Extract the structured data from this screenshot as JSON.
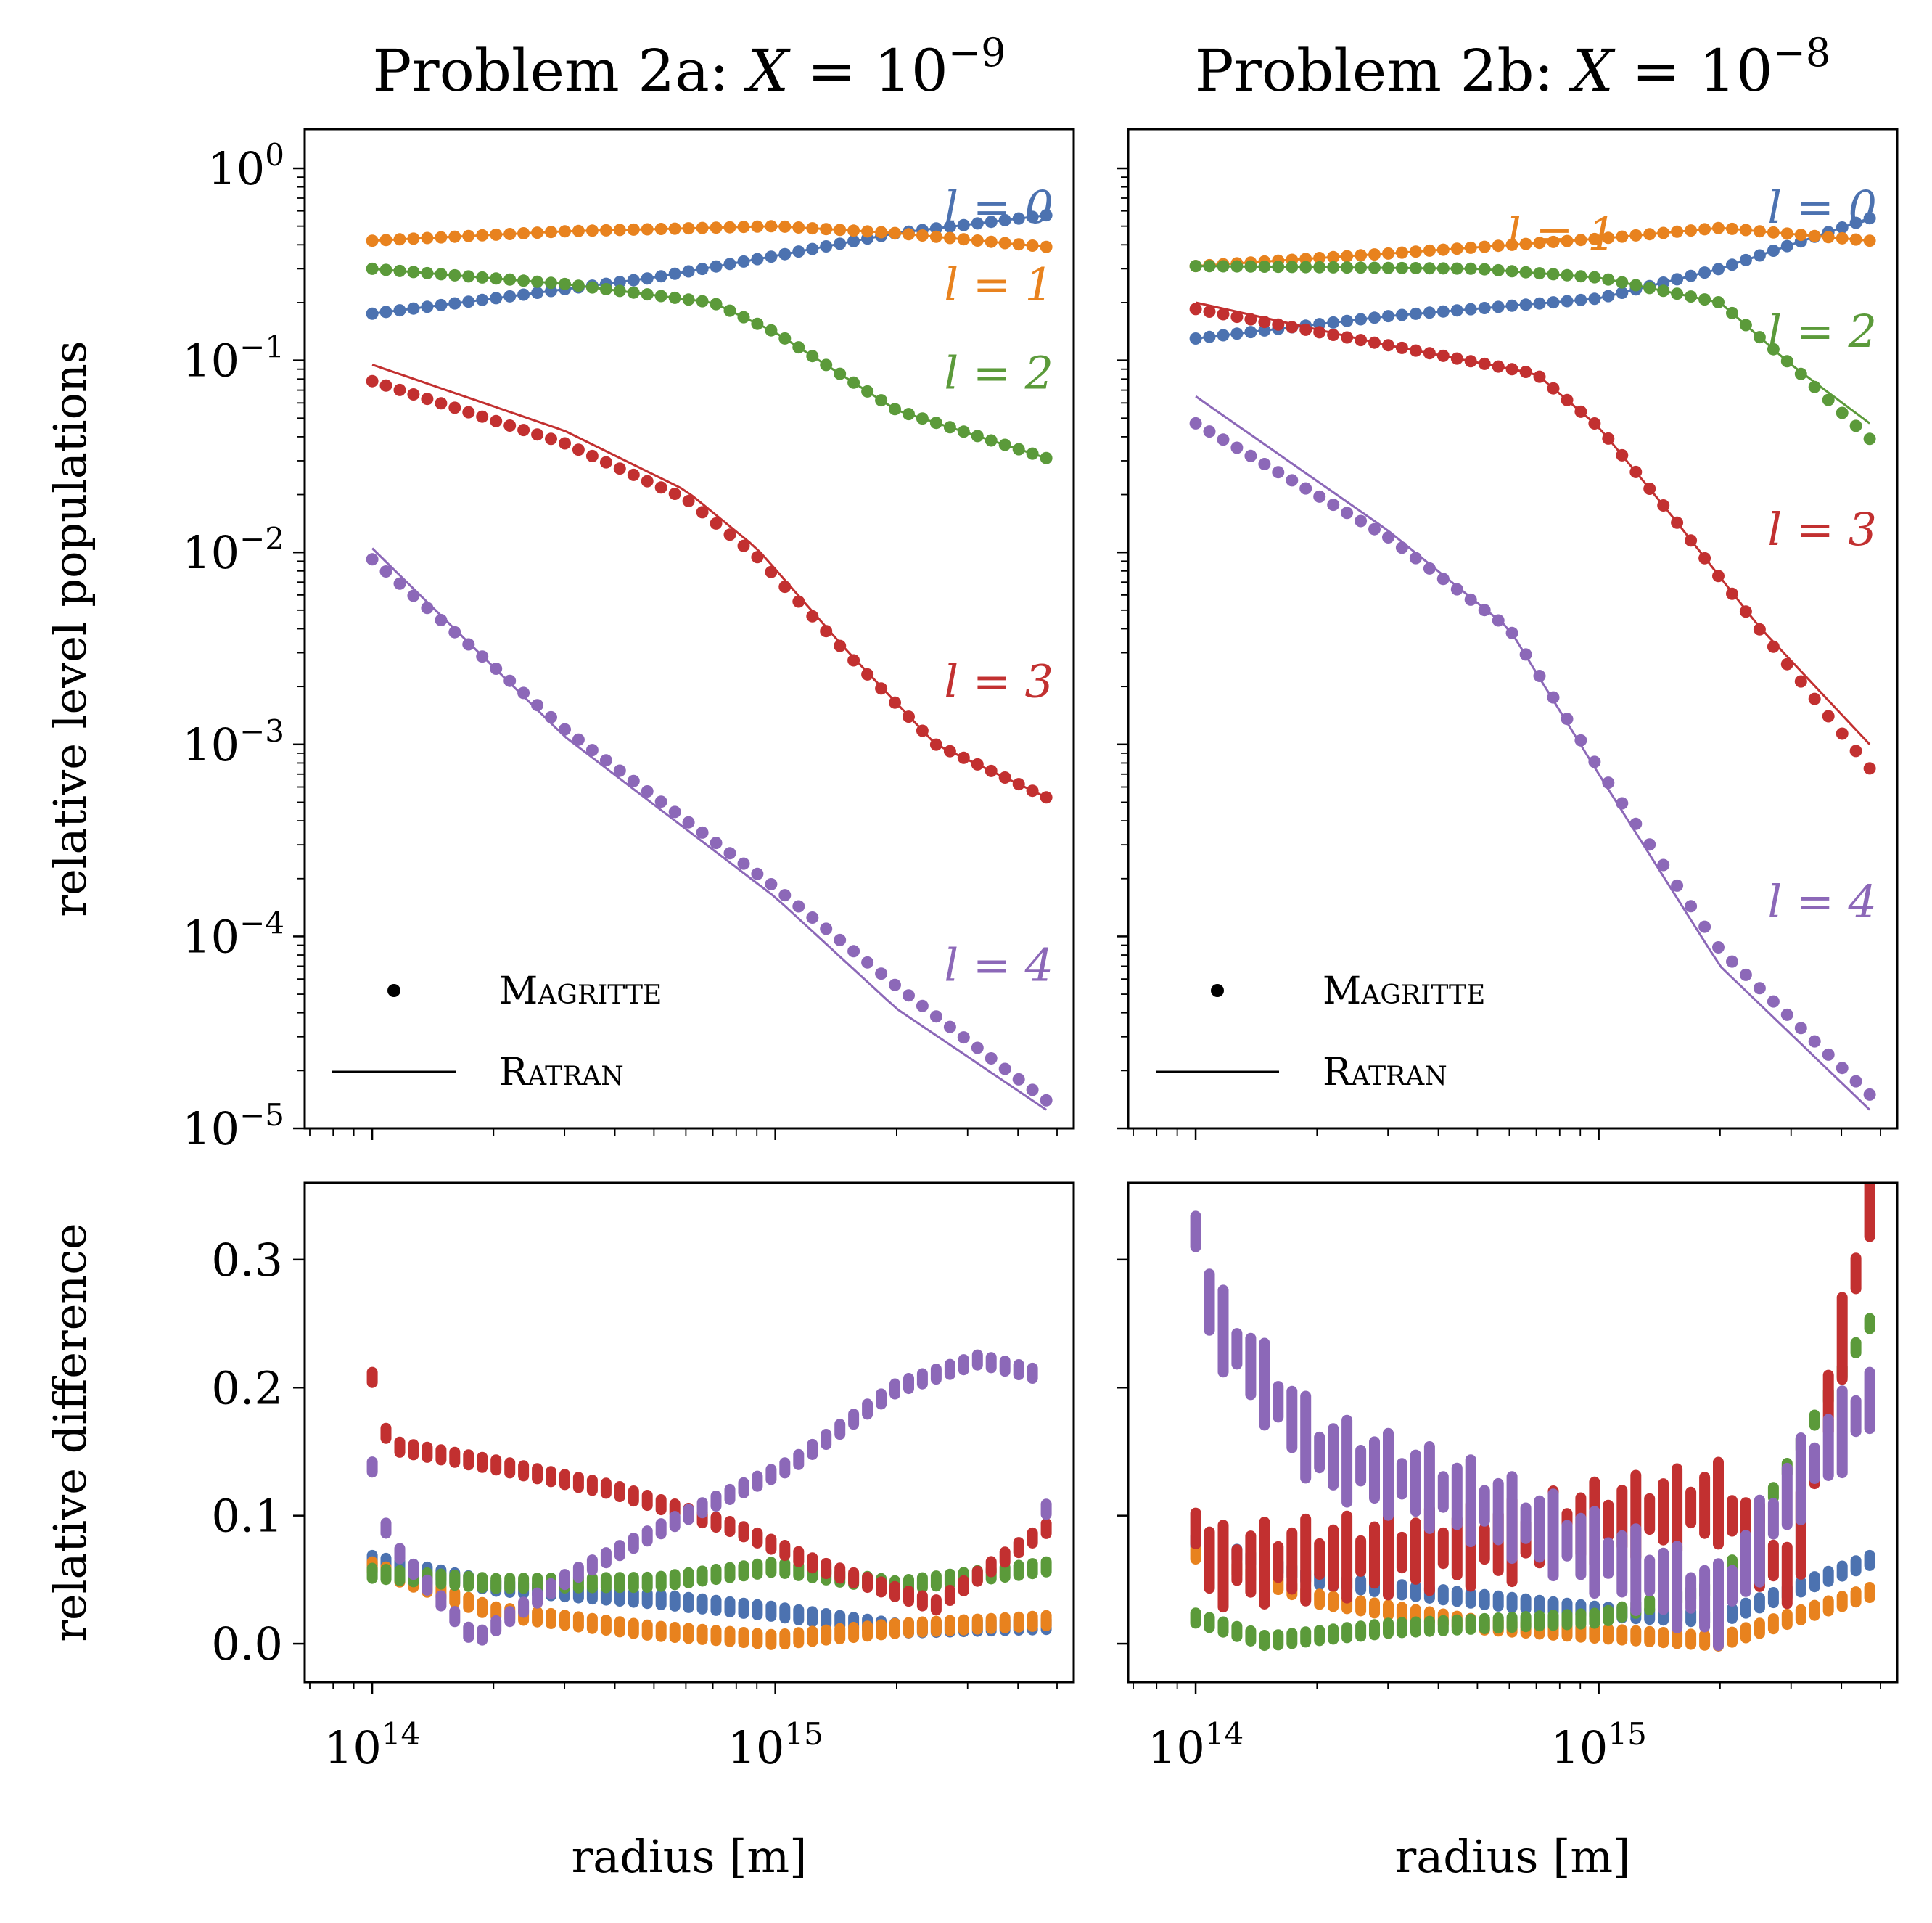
{
  "chart_data": [
    {
      "type": "line",
      "panel": "top-left",
      "title": "Problem 2a: X = 10^−9",
      "title_parts": {
        "prefix": "Problem 2a: ",
        "var": "X",
        "eq": " = 10",
        "exp": "−9"
      },
      "ylabel": "relative level populations",
      "xscale": "log",
      "yscale": "log",
      "xlim": [
        68000000000000.0,
        5500000000000000.0
      ],
      "ylim": [
        1e-05,
        1.6
      ],
      "x_ticks": [
        {
          "base": "10",
          "exp": "14",
          "value": 100000000000000.0
        },
        {
          "base": "10",
          "exp": "15",
          "value": 1000000000000000.0
        }
      ],
      "y_ticks": [
        {
          "base": "10",
          "exp": "0",
          "value": 1
        },
        {
          "base": "10",
          "exp": "−1",
          "value": 0.1
        },
        {
          "base": "10",
          "exp": "−2",
          "value": 0.01
        },
        {
          "base": "10",
          "exp": "−3",
          "value": 0.001
        },
        {
          "base": "10",
          "exp": "−4",
          "value": 0.0001
        },
        {
          "base": "10",
          "exp": "−5",
          "value": 1e-05
        }
      ],
      "legend": {
        "location": "lower-left",
        "entries": [
          {
            "marker": "dot",
            "label": "Magritte"
          },
          {
            "marker": "line",
            "label": "Ratran"
          }
        ]
      },
      "series": [
        {
          "name": "l = 0",
          "color": "#4c72b0",
          "label_pos": [
            3800000000000000.0,
            0.62
          ],
          "x": [
            100000000000000.0,
            200000000000000.0,
            500000000000000.0,
            1000000000000000.0,
            2000000000000000.0,
            4700000000000000.0
          ],
          "magritte": [
            0.175,
            0.21,
            0.27,
            0.35,
            0.46,
            0.57
          ],
          "ratran": [
            0.175,
            0.21,
            0.27,
            0.35,
            0.46,
            0.57
          ]
        },
        {
          "name": "l = 1",
          "color": "#e8821e",
          "label_pos": [
            3800000000000000.0,
            0.245
          ],
          "x": [
            100000000000000.0,
            300000000000000.0,
            1000000000000000.0,
            2000000000000000.0,
            4700000000000000.0
          ],
          "magritte": [
            0.42,
            0.47,
            0.5,
            0.46,
            0.39
          ],
          "ratran": [
            0.42,
            0.47,
            0.5,
            0.46,
            0.39
          ]
        },
        {
          "name": "l = 2",
          "color": "#5b9a3a",
          "label_pos": [
            3800000000000000.0,
            0.085
          ],
          "x": [
            100000000000000.0,
            300000000000000.0,
            700000000000000.0,
            1000000000000000.0,
            2000000000000000.0,
            4700000000000000.0
          ],
          "magritte": [
            0.3,
            0.25,
            0.2,
            0.14,
            0.055,
            0.031
          ],
          "ratran": [
            0.3,
            0.25,
            0.2,
            0.14,
            0.055,
            0.031
          ]
        },
        {
          "name": "l = 3",
          "color": "#c23030",
          "label_pos": [
            3800000000000000.0,
            0.0021
          ],
          "x": [
            100000000000000.0,
            300000000000000.0,
            600000000000000.0,
            900000000000000.0,
            1500000000000000.0,
            2500000000000000.0,
            4700000000000000.0
          ],
          "magritte": [
            0.078,
            0.037,
            0.019,
            0.0095,
            0.003,
            0.001,
            0.00053
          ],
          "ratran": [
            0.095,
            0.043,
            0.021,
            0.0105,
            0.0031,
            0.001,
            0.00053
          ]
        },
        {
          "name": "l = 4",
          "color": "#8c68b8",
          "label_pos": [
            3800000000000000.0,
            7e-05
          ],
          "x": [
            100000000000000.0,
            300000000000000.0,
            1000000000000000.0,
            2000000000000000.0,
            4700000000000000.0
          ],
          "magritte": [
            0.0092,
            0.0012,
            0.00018,
            5.5e-05,
            1.4e-05
          ],
          "ratran": [
            0.0105,
            0.0011,
            0.00016,
            4.2e-05,
            1.25e-05
          ]
        }
      ]
    },
    {
      "type": "line",
      "panel": "top-right",
      "title": "Problem 2b: X = 10^−8",
      "title_parts": {
        "prefix": "Problem 2b: ",
        "var": "X",
        "eq": " = 10",
        "exp": "−8"
      },
      "xscale": "log",
      "yscale": "log",
      "xlim": [
        68000000000000.0,
        5500000000000000.0
      ],
      "ylim": [
        1e-05,
        1.6
      ],
      "x_ticks": [
        {
          "base": "10",
          "exp": "14",
          "value": 100000000000000.0
        },
        {
          "base": "10",
          "exp": "15",
          "value": 1000000000000000.0
        }
      ],
      "legend": {
        "location": "lower-left",
        "entries": [
          {
            "marker": "dot",
            "label": "Magritte"
          },
          {
            "marker": "line",
            "label": "Ratran"
          }
        ]
      },
      "series": [
        {
          "name": "l = 0",
          "color": "#4c72b0",
          "label_pos": [
            3800000000000000.0,
            0.62
          ],
          "x": [
            100000000000000.0,
            300000000000000.0,
            1000000000000000.0,
            2000000000000000.0,
            4700000000000000.0
          ],
          "magritte": [
            0.13,
            0.17,
            0.21,
            0.3,
            0.55
          ],
          "ratran": [
            0.13,
            0.17,
            0.21,
            0.3,
            0.55
          ]
        },
        {
          "name": "l = 1",
          "color": "#e8821e",
          "label_pos": [
            700000000000000.0,
            0.45
          ],
          "x": [
            100000000000000.0,
            300000000000000.0,
            1000000000000000.0,
            2000000000000000.0,
            4700000000000000.0
          ],
          "magritte": [
            0.31,
            0.36,
            0.43,
            0.49,
            0.42
          ],
          "ratran": [
            0.31,
            0.36,
            0.43,
            0.49,
            0.42
          ]
        },
        {
          "name": "l = 2",
          "color": "#5b9a3a",
          "label_pos": [
            3800000000000000.0,
            0.14
          ],
          "x": [
            100000000000000.0,
            500000000000000.0,
            1000000000000000.0,
            2000000000000000.0,
            3000000000000000.0,
            4700000000000000.0
          ],
          "magritte": [
            0.31,
            0.3,
            0.27,
            0.2,
            0.095,
            0.039
          ],
          "ratran": [
            0.31,
            0.3,
            0.27,
            0.2,
            0.095,
            0.047
          ]
        },
        {
          "name": "l = 3",
          "color": "#c23030",
          "label_pos": [
            3800000000000000.0,
            0.013
          ],
          "x": [
            100000000000000.0,
            300000000000000.0,
            700000000000000.0,
            1000000000000000.0,
            1500000000000000.0,
            2500000000000000.0,
            4700000000000000.0
          ],
          "magritte": [
            0.185,
            0.12,
            0.085,
            0.045,
            0.016,
            0.004,
            0.00075
          ],
          "ratran": [
            0.2,
            0.12,
            0.085,
            0.045,
            0.016,
            0.0041,
            0.001
          ]
        },
        {
          "name": "l = 4",
          "color": "#8c68b8",
          "label_pos": [
            3800000000000000.0,
            0.00015
          ],
          "x": [
            100000000000000.0,
            300000000000000.0,
            600000000000000.0,
            1000000000000000.0,
            2000000000000000.0,
            4700000000000000.0
          ],
          "magritte": [
            0.047,
            0.012,
            0.004,
            0.00075,
            8.5e-05,
            1.5e-05
          ],
          "ratran": [
            0.065,
            0.013,
            0.004,
            0.0007,
            7e-05,
            1.25e-05
          ]
        }
      ]
    },
    {
      "type": "scatter",
      "panel": "bottom-left",
      "xlabel": "radius [m]",
      "ylabel": "relative difference",
      "xscale": "log",
      "xlim": [
        68000000000000.0,
        5500000000000000.0
      ],
      "ylim": [
        -0.03,
        0.36
      ],
      "x_ticks": [
        {
          "base": "10",
          "exp": "14",
          "value": 100000000000000.0
        },
        {
          "base": "10",
          "exp": "15",
          "value": 1000000000000000.0
        }
      ],
      "y_ticks": [
        {
          "label": "0.0",
          "value": 0
        },
        {
          "label": "0.1",
          "value": 0.1
        },
        {
          "label": "0.2",
          "value": 0.2
        },
        {
          "label": "0.3",
          "value": 0.3
        }
      ],
      "series": [
        {
          "name": "l = 0",
          "color": "#4c72b0",
          "x": [
            100000000000000.0,
            200000000000000.0,
            500000000000000.0,
            1000000000000000.0,
            2000000000000000.0,
            4700000000000000.0
          ],
          "values": [
            0.065,
            0.045,
            0.035,
            0.025,
            0.012,
            0.015
          ]
        },
        {
          "name": "l = 1",
          "color": "#e8821e",
          "x": [
            100000000000000.0,
            200000000000000.0,
            500000000000000.0,
            1000000000000000.0,
            2000000000000000.0,
            4700000000000000.0
          ],
          "values": [
            0.06,
            0.025,
            0.01,
            0.003,
            0.012,
            0.018
          ]
        },
        {
          "name": "l = 2",
          "color": "#5b9a3a",
          "x": [
            100000000000000.0,
            200000000000000.0,
            500000000000000.0,
            1000000000000000.0,
            2000000000000000.0,
            4700000000000000.0
          ],
          "values": [
            0.055,
            0.047,
            0.048,
            0.06,
            0.045,
            0.06
          ]
        },
        {
          "name": "l = 3",
          "color": "#c23030",
          "x": [
            100000000000000.0,
            110000000000000.0,
            200000000000000.0,
            400000000000000.0,
            800000000000000.0,
            1300000000000000.0,
            2500000000000000.0,
            4700000000000000.0
          ],
          "values": [
            0.208,
            0.155,
            0.14,
            0.12,
            0.09,
            0.06,
            0.03,
            0.09
          ]
        },
        {
          "name": "l = 4",
          "color": "#8c68b8",
          "x": [
            100000000000000.0,
            110000000000000.0,
            180000000000000.0,
            300000000000000.0,
            600000000000000.0,
            1100000000000000.0,
            2000000000000000.0,
            3200000000000000.0,
            4500000000000000.0,
            4700000000000000.0
          ],
          "values": [
            0.138,
            0.08,
            0.003,
            0.05,
            0.1,
            0.14,
            0.2,
            0.222,
            0.21,
            0.105
          ]
        }
      ]
    },
    {
      "type": "scatter",
      "panel": "bottom-right",
      "xlabel": "radius [m]",
      "xscale": "log",
      "xlim": [
        68000000000000.0,
        5500000000000000.0
      ],
      "ylim": [
        -0.03,
        0.36
      ],
      "x_ticks": [
        {
          "base": "10",
          "exp": "14",
          "value": 100000000000000.0
        },
        {
          "base": "10",
          "exp": "15",
          "value": 1000000000000000.0
        }
      ],
      "series": [
        {
          "name": "l = 0",
          "color": "#4c72b0",
          "x": [
            100000000000000.0,
            200000000000000.0,
            500000000000000.0,
            1000000000000000.0,
            2000000000000000.0,
            4700000000000000.0
          ],
          "values": [
            0.08,
            0.05,
            0.035,
            0.025,
            0.02,
            0.065
          ]
        },
        {
          "name": "l = 1",
          "color": "#e8821e",
          "x": [
            100000000000000.0,
            200000000000000.0,
            500000000000000.0,
            1000000000000000.0,
            2000000000000000.0,
            4700000000000000.0
          ],
          "values": [
            0.07,
            0.035,
            0.015,
            0.008,
            0.002,
            0.04
          ]
        },
        {
          "name": "l = 2",
          "color": "#5b9a3a",
          "x": [
            100000000000000.0,
            150000000000000.0,
            300000000000000.0,
            1000000000000000.0,
            2000000000000000.0,
            4700000000000000.0
          ],
          "values": [
            0.02,
            0.002,
            0.012,
            0.02,
            0.045,
            0.25
          ]
        },
        {
          "name": "l = 3",
          "color": "#c23030",
          "x": [
            100000000000000.0,
            110000000000000.0,
            300000000000000.0,
            600000000000000.0,
            1000000000000000.0,
            2000000000000000.0,
            3000000000000000.0,
            4700000000000000.0
          ],
          "values": [
            0.09,
            0.06,
            0.07,
            0.08,
            0.095,
            0.11,
            0.05,
            0.34
          ]
        },
        {
          "name": "l = 4",
          "color": "#8c68b8",
          "x": [
            100000000000000.0,
            110000000000000.0,
            200000000000000.0,
            500000000000000.0,
            1000000000000000.0,
            2000000000000000.0,
            3000000000000000.0,
            4700000000000000.0
          ],
          "values": [
            0.322,
            0.255,
            0.15,
            0.11,
            0.07,
            0.03,
            0.12,
            0.19
          ]
        }
      ]
    }
  ]
}
